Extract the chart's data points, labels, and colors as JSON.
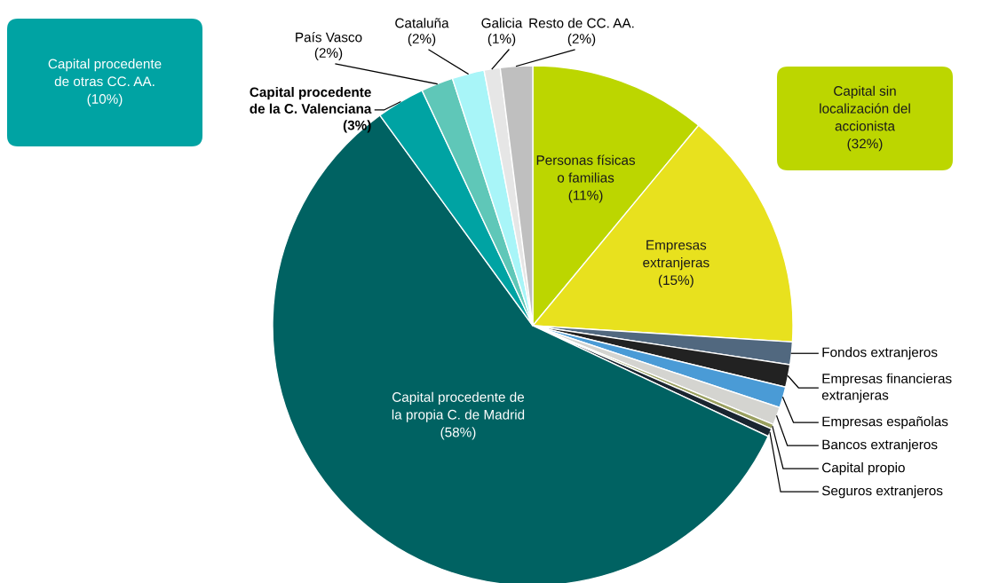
{
  "chart_data": {
    "type": "pie",
    "categories": [
      "Personas físicas\no familias",
      "Empresas\nextranjeras",
      "Fondos extranjeros",
      "Empresas financieras\nextranjeras",
      "Empresas españolas",
      "Bancos extranjeros",
      "Capital propio",
      "Seguros extranjeros",
      "Capital procedente de\nla propia C. de Madrid",
      "Capital procedente\nde la C. Valenciana",
      "País Vasco",
      "Cataluña",
      "Galicia",
      "Resto de CC. AA."
    ],
    "values": [
      11,
      15,
      1.4,
      1.4,
      1.3,
      1.1,
      0.3,
      0.5,
      58,
      3,
      2,
      2,
      1,
      2
    ],
    "value_labels": [
      "(11%)",
      "(15%)",
      null,
      null,
      null,
      null,
      null,
      null,
      "(58%)",
      "(3%)",
      "(2%)",
      "(2%)",
      "(1%)",
      "(2%)"
    ],
    "colors": [
      "#bcd600",
      "#e8e11e",
      "#51687f",
      "#222222",
      "#4a9bd6",
      "#d4d4d0",
      "#9aa060",
      "#1a2530",
      "#006262",
      "#00a3a3",
      "#5fc7b8",
      "#a8f5f8",
      "#e6e6e6",
      "#bfbfbf"
    ],
    "annotations": [
      "Capital sin\nlocalización del\naccionista\n(32%)",
      "Capital procedente\nde otras CC. AA.\n(10%)"
    ],
    "legend": false
  }
}
